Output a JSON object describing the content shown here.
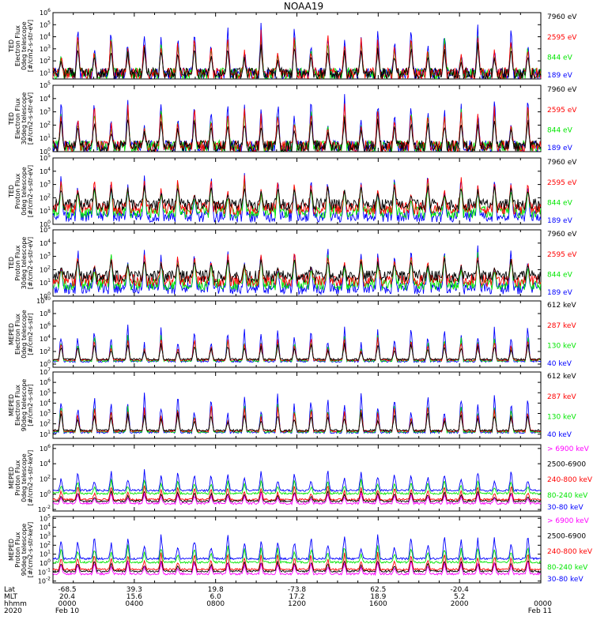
{
  "title": "NOAA19",
  "footer": {
    "row_labels": [
      "Lat",
      "MLT",
      "hhmm",
      "2020"
    ],
    "columns": [
      {
        "lat": "-68.5",
        "mlt": "20.4",
        "hhmm": "0000",
        "date": "Feb 10"
      },
      {
        "lat": "39.3",
        "mlt": "15.6",
        "hhmm": "0400",
        "date": ""
      },
      {
        "lat": "19.8",
        "mlt": "6.0",
        "hhmm": "0800",
        "date": ""
      },
      {
        "lat": "-73.8",
        "mlt": "17.2",
        "hhmm": "1200",
        "date": ""
      },
      {
        "lat": "62.5",
        "mlt": "18.9",
        "hhmm": "1600",
        "date": ""
      },
      {
        "lat": "-20.4",
        "mlt": "5.2",
        "hhmm": "2000",
        "date": ""
      },
      {
        "lat": "",
        "mlt": "",
        "hhmm": "0000",
        "date": "Feb 11"
      }
    ]
  },
  "colors": {
    "black": "#000000",
    "red": "#ff0000",
    "green": "#00e600",
    "green_bright": "#00ff00",
    "blue": "#0000ff",
    "magenta": "#ff00ff"
  },
  "chart_data": [
    {
      "type": "line",
      "ylabel": [
        "TED",
        "Electron Flux",
        "0deg telescope",
        "[#/cm2-s-str-eV]"
      ],
      "yticks": [
        "10^1",
        "10^2",
        "10^3",
        "10^4",
        "10^5",
        "10^6"
      ],
      "ylim_log10": [
        0.5,
        6
      ],
      "x": "time, 2020-02-10 00:00 to 2020-02-11 00:00 (hours 0-24)",
      "series": [
        {
          "name": "7960 eV",
          "color": "#000000"
        },
        {
          "name": "2595 eV",
          "color": "#ff0000"
        },
        {
          "name": "844 eV",
          "color": "#00e600"
        },
        {
          "name": "189 eV",
          "color": "#0000ff"
        }
      ],
      "peak_log10": 5.4
    },
    {
      "type": "line",
      "ylabel": [
        "TED",
        "Electron Flux",
        "30deg telescope",
        "[#/cm2-s-str-eV]"
      ],
      "yticks": [
        "10^0",
        "10^1",
        "10^2",
        "10^3",
        "10^4",
        "10^5"
      ],
      "ylim_log10": [
        0,
        5
      ],
      "x": "time, 2020-02-10 00:00 to 2020-02-11 00:00 (hours 0-24)",
      "series": [
        {
          "name": "7960 eV",
          "color": "#000000"
        },
        {
          "name": "2595 eV",
          "color": "#ff0000"
        },
        {
          "name": "844 eV",
          "color": "#00e600"
        },
        {
          "name": "189 eV",
          "color": "#0000ff"
        }
      ],
      "peak_log10": 4.6
    },
    {
      "type": "line",
      "ylabel": [
        "TED",
        "Proton Flux",
        "0deg telescope",
        "[#/cm2-s-str-eV]"
      ],
      "yticks": [
        "10^0",
        "10^1",
        "10^2",
        "10^3",
        "10^4",
        "10^5"
      ],
      "ylim_log10": [
        0,
        5
      ],
      "x": "time, 2020-02-10 00:00 to 2020-02-11 00:00 (hours 0-24)",
      "series": [
        {
          "name": "7960 eV",
          "color": "#000000"
        },
        {
          "name": "2595 eV",
          "color": "#ff0000"
        },
        {
          "name": "844 eV",
          "color": "#00e600"
        },
        {
          "name": "189 eV",
          "color": "#0000ff"
        }
      ],
      "peak_log10": 4.3
    },
    {
      "type": "line",
      "ylabel": [
        "TED",
        "Proton Flux",
        "30deg telescope",
        "[#/cm2-s-str-eV]"
      ],
      "yticks": [
        "10^0",
        "10^1",
        "10^2",
        "10^3",
        "10^4",
        "10^5"
      ],
      "ylim_log10": [
        0,
        5
      ],
      "x": "time, 2020-02-10 00:00 to 2020-02-11 00:00 (hours 0-24)",
      "series": [
        {
          "name": "7960 eV",
          "color": "#000000"
        },
        {
          "name": "2595 eV",
          "color": "#ff0000"
        },
        {
          "name": "844 eV",
          "color": "#00e600"
        },
        {
          "name": "189 eV",
          "color": "#0000ff"
        }
      ],
      "peak_log10": 4.1
    },
    {
      "type": "line",
      "ylabel": [
        "MEPED",
        "Electron Flux",
        "0deg telescope",
        "[#/cm2-s-str]"
      ],
      "yticks": [
        "10^0",
        "10^2",
        "10^4",
        "10^6",
        "10^8",
        "10^10"
      ],
      "ylim_log10": [
        -0.5,
        10
      ],
      "x": "time, 2020-02-10 00:00 to 2020-02-11 00:00 (hours 0-24)",
      "series": [
        {
          "name": "612 keV",
          "color": "#000000"
        },
        {
          "name": "287 keV",
          "color": "#ff0000"
        },
        {
          "name": "130 keV",
          "color": "#00e600"
        },
        {
          "name": "40 keV",
          "color": "#0000ff"
        }
      ],
      "peak_log10": 8.0
    },
    {
      "type": "line",
      "ylabel": [
        "MEPED",
        "Electron Flux",
        "90deg telescope",
        "[#/cm2-s-str]"
      ],
      "yticks": [
        "10^1",
        "10^2",
        "10^3",
        "10^4",
        "10^5",
        "10^6",
        "10^7"
      ],
      "ylim_log10": [
        0.6,
        7
      ],
      "x": "time, 2020-02-10 00:00 to 2020-02-11 00:00 (hours 0-24)",
      "series": [
        {
          "name": "612 keV",
          "color": "#000000"
        },
        {
          "name": "287 keV",
          "color": "#ff0000"
        },
        {
          "name": "130 keV",
          "color": "#00e600"
        },
        {
          "name": "40 keV",
          "color": "#0000ff"
        }
      ],
      "peak_log10": 6.4
    },
    {
      "type": "line",
      "ylabel": [
        "MEPED",
        "Proton Flux",
        "0deg telescope",
        "[#/cm2-s-str-keV]"
      ],
      "yticks": [
        "10^-2",
        "10^0",
        "10^2",
        "10^4",
        "10^6"
      ],
      "ylim_log10": [
        -2.2,
        6.5
      ],
      "x": "time, 2020-02-10 00:00 to 2020-02-11 00:00 (hours 0-24)",
      "series": [
        {
          "name": "> 6900 keV",
          "color": "#ff00ff"
        },
        {
          "name": "2500-6900",
          "color": "#000000"
        },
        {
          "name": "240-800 keV",
          "color": "#ff0000"
        },
        {
          "name": "80-240 keV",
          "color": "#00e600"
        },
        {
          "name": "30-80 keV",
          "color": "#0000ff"
        }
      ],
      "peak_log10": 4.0
    },
    {
      "type": "line",
      "ylabel": [
        "MEPED",
        "Proton Flux",
        "90deg telescope",
        "[#/cm2-s-str-keV]"
      ],
      "yticks": [
        "10^-2",
        "10^-1",
        "10^0",
        "10^1",
        "10^2",
        "10^3",
        "10^4",
        "10^5"
      ],
      "ylim_log10": [
        -2.2,
        5.2
      ],
      "x": "time, 2020-02-10 00:00 to 2020-02-11 00:00 (hours 0-24)",
      "series": [
        {
          "name": "> 6900 keV",
          "color": "#ff00ff"
        },
        {
          "name": "2500-6900",
          "color": "#000000"
        },
        {
          "name": "240-800 keV",
          "color": "#ff0000"
        },
        {
          "name": "80-240 keV",
          "color": "#00e600"
        },
        {
          "name": "30-80 keV",
          "color": "#0000ff"
        }
      ],
      "peak_log10": 4.0
    }
  ]
}
